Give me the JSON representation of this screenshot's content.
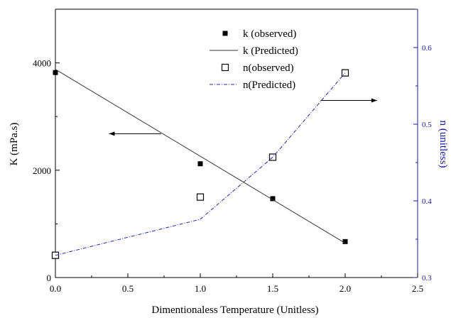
{
  "chart_data": {
    "type": "scatter",
    "title": "",
    "xlabel": "Dimentionaless Temperature (Unitless)",
    "ylabel_left": "K (mPa.s)",
    "ylabel_right": "n (unitless)",
    "xlim": [
      0.0,
      2.5
    ],
    "ylim_left": [
      0,
      5000
    ],
    "ylim_right": [
      0.3,
      0.65
    ],
    "x_ticks": [
      "0.0",
      "0.5",
      "1.0",
      "1.5",
      "2.0",
      "2.5"
    ],
    "y_left_ticks": [
      "0",
      "2000",
      "4000"
    ],
    "y_right_ticks": [
      "0.3",
      "0.4",
      "0.5",
      "0.6"
    ],
    "grid": false,
    "legend_position": "top-center",
    "right_axis_color": "#1a1aa6",
    "series": [
      {
        "name": "k (observed)",
        "axis": "left",
        "style": "filled-square",
        "color": "#000000",
        "x": [
          0.0,
          1.0,
          1.5,
          2.0
        ],
        "y": [
          3820,
          2120,
          1470,
          670
        ]
      },
      {
        "name": "k (Predicted)",
        "axis": "left",
        "style": "line",
        "color": "#333333",
        "x": [
          0.0,
          2.0
        ],
        "y": [
          3880,
          640
        ]
      },
      {
        "name": "n(observed)",
        "axis": "right",
        "style": "open-square",
        "color": "#000000",
        "x": [
          0.0,
          1.0,
          1.5,
          2.0
        ],
        "y": [
          0.329,
          0.405,
          0.457,
          0.567
        ]
      },
      {
        "name": "n(Predicted)",
        "axis": "right",
        "style": "dash-dot-line",
        "color": "#2323b4",
        "x": [
          0.0,
          1.0,
          1.5,
          2.0
        ],
        "y": [
          0.329,
          0.376,
          0.457,
          0.567
        ]
      }
    ],
    "annotations": [
      {
        "type": "arrow",
        "points_to": "left-axis",
        "x_from": 0.73,
        "x_to": 0.37,
        "axis": "left",
        "y": 2680
      },
      {
        "type": "arrow",
        "points_to": "right-axis",
        "x_from": 1.83,
        "x_to": 2.22,
        "axis": "right",
        "y": 0.531
      }
    ]
  }
}
